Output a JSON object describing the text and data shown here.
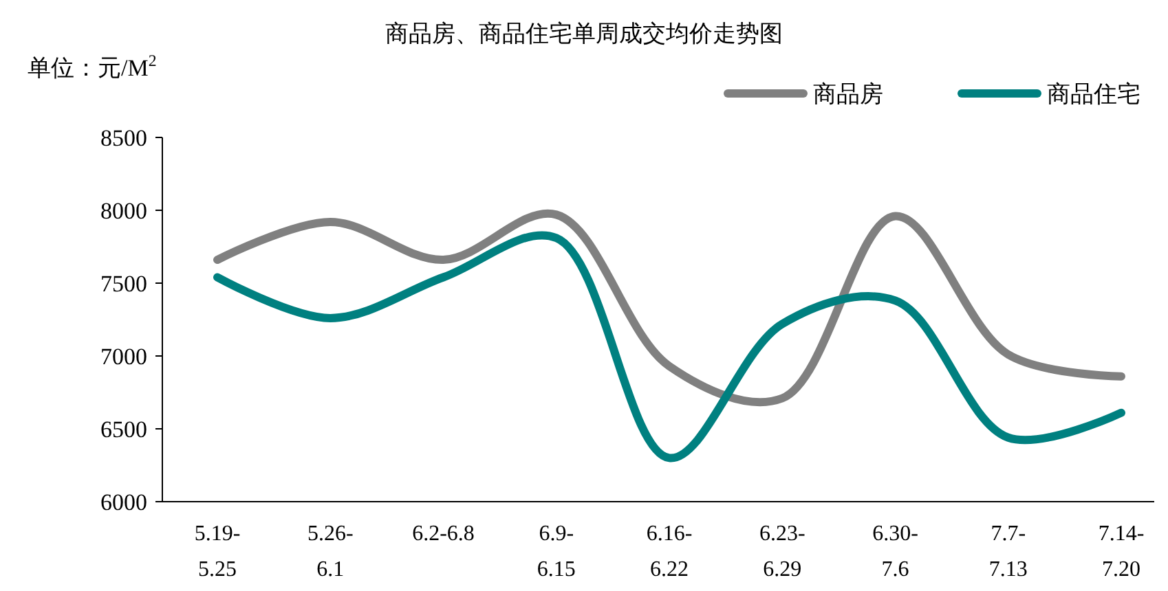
{
  "chart_data": {
    "type": "line",
    "title": "商品房、商品住宅单周成交均价走势图",
    "ylabel": "单位：元/M$^{2}$",
    "categories": [
      "5.19-\n5.25",
      "5.26-\n6.1",
      "6.2-6.8",
      "6.9-\n6.15",
      "6.16-\n6.22",
      "6.23-\n6.29",
      "6.30-\n7.6",
      "7.7-\n7.13",
      "7.14-\n7.20"
    ],
    "series": [
      {
        "name": "商品房",
        "color": "#808080",
        "values": [
          7660,
          7920,
          7660,
          7970,
          6930,
          6710,
          7960,
          7010,
          6860
        ]
      },
      {
        "name": "商品住宅",
        "color": "#008080",
        "values": [
          7540,
          7260,
          7540,
          7810,
          6300,
          7220,
          7380,
          6440,
          6610
        ]
      }
    ],
    "ylim": [
      6000,
      8500
    ],
    "yticks": [
      6000,
      6500,
      7000,
      7500,
      8000,
      8500
    ],
    "legend": "top right",
    "grid": false,
    "marker": "none",
    "line_style": "solid"
  }
}
